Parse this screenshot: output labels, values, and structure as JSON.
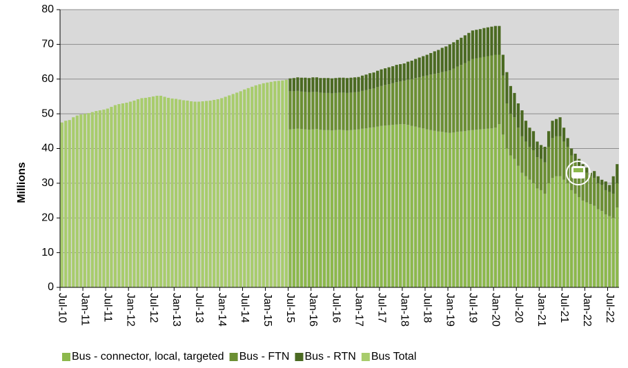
{
  "chart_data": {
    "type": "stacked-bar",
    "y_label": "Millions",
    "ylim": [
      0,
      80
    ],
    "yticks": [
      0,
      10,
      20,
      30,
      40,
      50,
      60,
      70,
      80
    ],
    "grid": true,
    "legend": "bottom",
    "categories": [
      "Jul-10",
      null,
      null,
      null,
      null,
      null,
      "Jan-11",
      null,
      null,
      null,
      null,
      null,
      "Jul-11",
      null,
      null,
      null,
      null,
      null,
      "Jan-12",
      null,
      null,
      null,
      null,
      null,
      "Jul-12",
      null,
      null,
      null,
      null,
      null,
      "Jan-13",
      null,
      null,
      null,
      null,
      null,
      "Jul-13",
      null,
      null,
      null,
      null,
      null,
      "Jan-14",
      null,
      null,
      null,
      null,
      null,
      "Jul-14",
      null,
      null,
      null,
      null,
      null,
      "Jan-15",
      null,
      null,
      null,
      null,
      null,
      "Jul-15",
      null,
      null,
      null,
      null,
      null,
      "Jan-16",
      null,
      null,
      null,
      null,
      null,
      "Jul-16",
      null,
      null,
      null,
      null,
      null,
      "Jan-17",
      null,
      null,
      null,
      null,
      null,
      "Jul-17",
      null,
      null,
      null,
      null,
      null,
      "Jan-18",
      null,
      null,
      null,
      null,
      null,
      "Jul-18",
      null,
      null,
      null,
      null,
      null,
      "Jan-19",
      null,
      null,
      null,
      null,
      null,
      "Jul-19",
      null,
      null,
      null,
      null,
      null,
      "Jan-20",
      null,
      null,
      null,
      null,
      null,
      "Jul-20",
      null,
      null,
      null,
      null,
      null,
      "Jan-21",
      null,
      null,
      null,
      null,
      null,
      "Jul-21",
      null,
      null,
      null,
      null,
      null,
      "Jan-22",
      null,
      null,
      null,
      null,
      null,
      "Jul-22",
      null,
      null
    ],
    "series": [
      {
        "name": "Bus - connector, local, targeted",
        "color": "#8cb84c",
        "values": [
          null,
          null,
          null,
          null,
          null,
          null,
          null,
          null,
          null,
          null,
          null,
          null,
          null,
          null,
          null,
          null,
          null,
          null,
          null,
          null,
          null,
          null,
          null,
          null,
          null,
          null,
          null,
          null,
          null,
          null,
          null,
          null,
          null,
          null,
          null,
          null,
          null,
          null,
          null,
          null,
          null,
          null,
          null,
          null,
          null,
          null,
          null,
          null,
          null,
          null,
          null,
          null,
          null,
          null,
          null,
          null,
          null,
          null,
          null,
          null,
          45.5,
          45.6,
          45.7,
          45.6,
          45.5,
          45.4,
          45.5,
          45.6,
          45.4,
          45.3,
          45.3,
          45.2,
          45.3,
          45.4,
          45.3,
          45.2,
          45.3,
          45.4,
          45.5,
          45.7,
          45.8,
          46,
          46.1,
          46.3,
          46.5,
          46.6,
          46.7,
          46.8,
          46.9,
          47,
          47,
          46.8,
          46.5,
          46.3,
          46,
          45.8,
          45.5,
          45.3,
          45.1,
          44.9,
          44.8,
          44.6,
          44.5,
          44.6,
          44.8,
          44.9,
          45,
          45.2,
          45.3,
          45.4,
          45.5,
          45.6,
          45.7,
          45.8,
          46,
          47,
          44,
          40,
          38,
          37,
          35,
          33,
          32,
          31,
          30,
          28.5,
          28,
          27,
          30,
          31.5,
          32,
          32,
          31,
          30,
          28,
          27,
          26,
          25,
          24.5,
          24,
          23.5,
          22.5,
          22,
          21,
          20.5,
          20,
          23
        ]
      },
      {
        "name": "Bus - FTN",
        "color": "#6b8f33",
        "values": [
          null,
          null,
          null,
          null,
          null,
          null,
          null,
          null,
          null,
          null,
          null,
          null,
          null,
          null,
          null,
          null,
          null,
          null,
          null,
          null,
          null,
          null,
          null,
          null,
          null,
          null,
          null,
          null,
          null,
          null,
          null,
          null,
          null,
          null,
          null,
          null,
          null,
          null,
          null,
          null,
          null,
          null,
          null,
          null,
          null,
          null,
          null,
          null,
          null,
          null,
          null,
          null,
          null,
          null,
          null,
          null,
          null,
          null,
          null,
          null,
          11,
          10.9,
          10.9,
          10.8,
          10.8,
          10.8,
          10.8,
          10.7,
          10.7,
          10.7,
          10.7,
          10.7,
          10.7,
          10.7,
          10.8,
          10.8,
          10.8,
          10.8,
          10.8,
          10.9,
          11,
          11.1,
          11.2,
          11.4,
          11.5,
          11.7,
          11.8,
          12,
          12.2,
          12.3,
          12.5,
          13,
          13.5,
          14,
          14.5,
          15,
          15.5,
          16,
          16.4,
          16.8,
          17.2,
          17.6,
          18,
          18.4,
          18.8,
          19.2,
          19.6,
          20,
          20.5,
          20.6,
          20.7,
          20.8,
          20.9,
          21,
          21,
          20,
          17,
          13,
          12,
          12,
          11,
          10.5,
          10,
          9.5,
          9.5,
          9,
          9,
          9,
          10.5,
          11.5,
          11.5,
          11.5,
          11,
          10.5,
          10,
          9.5,
          9,
          8.5,
          8.5,
          8,
          8,
          7.5,
          7.5,
          7,
          7,
          7,
          7
        ]
      },
      {
        "name": "Bus - RTN",
        "color": "#4b6a22",
        "values": [
          null,
          null,
          null,
          null,
          null,
          null,
          null,
          null,
          null,
          null,
          null,
          null,
          null,
          null,
          null,
          null,
          null,
          null,
          null,
          null,
          null,
          null,
          null,
          null,
          null,
          null,
          null,
          null,
          null,
          null,
          null,
          null,
          null,
          null,
          null,
          null,
          null,
          null,
          null,
          null,
          null,
          null,
          null,
          null,
          null,
          null,
          null,
          null,
          null,
          null,
          null,
          null,
          null,
          null,
          null,
          null,
          null,
          null,
          null,
          null,
          3.7,
          3.8,
          3.9,
          4,
          4.1,
          4.1,
          4.2,
          4.2,
          4.2,
          4.3,
          4.3,
          4.3,
          4.3,
          4.3,
          4.3,
          4.3,
          4.3,
          4.3,
          4.3,
          4.4,
          4.5,
          4.6,
          4.6,
          4.7,
          4.8,
          4.8,
          4.9,
          4.9,
          5,
          5,
          5,
          5.2,
          5.3,
          5.5,
          5.7,
          5.8,
          6,
          6.2,
          6.5,
          6.7,
          7,
          7.2,
          7.5,
          7.6,
          7.7,
          7.8,
          8,
          8.1,
          8.2,
          8.2,
          8.2,
          8.3,
          8.3,
          8.3,
          8.3,
          8.3,
          6,
          9,
          8,
          7,
          7,
          7.5,
          6,
          5.5,
          5.5,
          4.5,
          4,
          4.5,
          4.5,
          5,
          5,
          5.5,
          4,
          2.5,
          2,
          2,
          2,
          2,
          1.5,
          1,
          2,
          2,
          1.5,
          2.5,
          2,
          5,
          5.5
        ]
      },
      {
        "name": "Bus Total",
        "color": "#a8cc6c",
        "values": [
          47.5,
          48,
          48.2,
          49,
          49.5,
          49.8,
          50,
          50.2,
          50.5,
          50.8,
          51,
          51.2,
          51.5,
          52,
          52.5,
          52.8,
          53,
          53.2,
          53.5,
          53.8,
          54.2,
          54.5,
          54.6,
          54.8,
          55,
          55.2,
          55.2,
          54.9,
          54.6,
          54.4,
          54.3,
          54.1,
          53.9,
          53.8,
          53.6,
          53.5,
          53.5,
          53.6,
          53.7,
          53.8,
          54,
          54.2,
          54.5,
          54.9,
          55.3,
          55.7,
          56.1,
          56.5,
          57,
          57.4,
          57.8,
          58.2,
          58.5,
          58.8,
          59,
          59.2,
          59.4,
          59.5,
          59.6,
          59.8,
          null,
          null,
          null,
          null,
          null,
          null,
          null,
          null,
          null,
          null,
          null,
          null,
          null,
          null,
          null,
          null,
          null,
          null,
          null,
          null,
          null,
          null,
          null,
          null,
          null,
          null,
          null,
          null,
          null,
          null,
          null,
          null,
          null,
          null,
          null,
          null,
          null,
          null,
          null,
          null,
          null,
          null,
          null,
          null,
          null,
          null,
          null,
          null,
          null,
          null,
          null,
          null,
          null,
          null,
          null,
          null,
          null,
          null,
          null,
          null,
          null,
          null,
          null,
          null,
          null,
          null,
          null,
          null,
          null,
          null,
          null,
          null,
          null,
          null,
          null,
          null,
          null,
          null,
          null,
          null,
          null,
          null,
          null,
          null,
          null,
          null,
          null
        ]
      }
    ]
  }
}
